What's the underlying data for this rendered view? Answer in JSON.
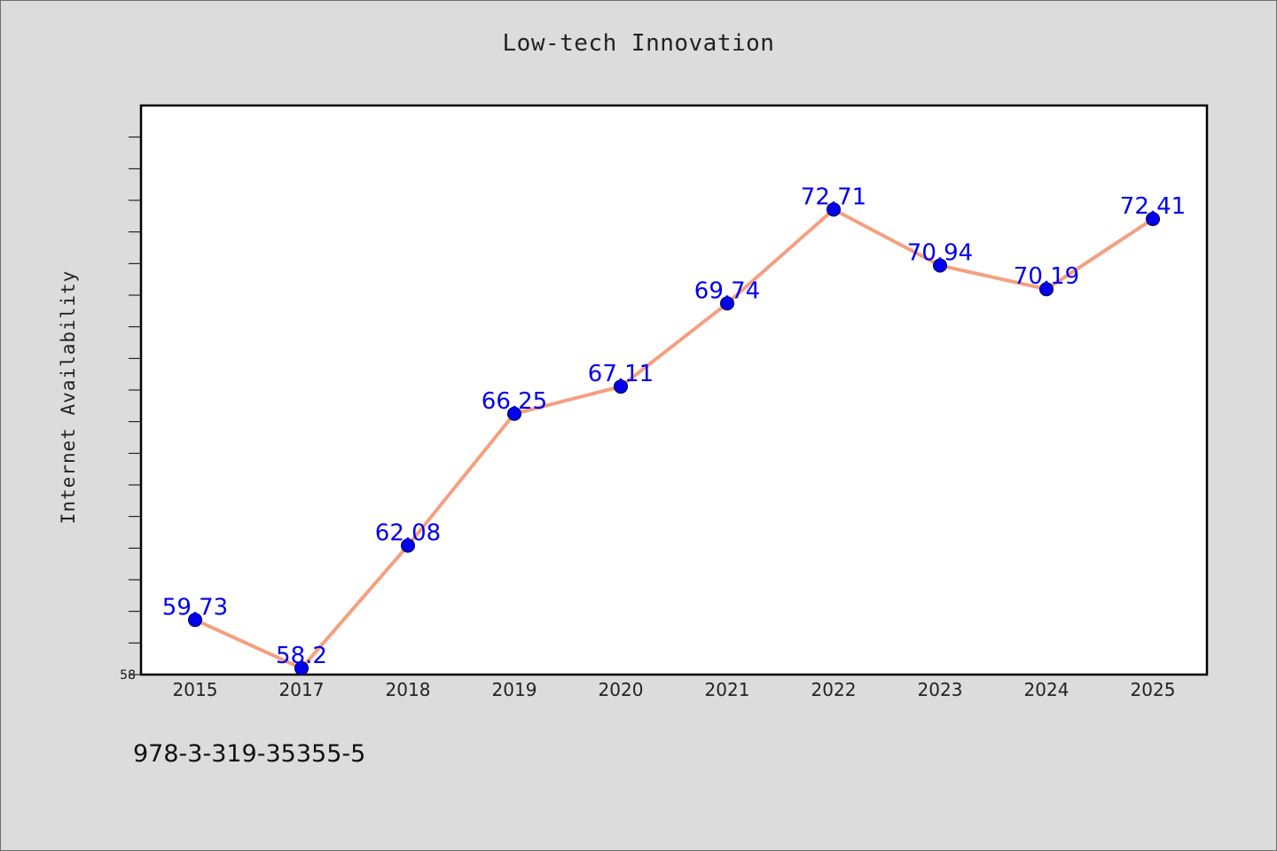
{
  "chart_data": {
    "type": "line",
    "title": "Low-tech Innovation",
    "xlabel": "",
    "ylabel": "Internet Availability",
    "categories": [
      "2015",
      "2017",
      "2018",
      "2019",
      "2020",
      "2021",
      "2022",
      "2023",
      "2024",
      "2025"
    ],
    "series": [
      {
        "values": [
          59.73,
          58.2,
          62.08,
          66.25,
          67.11,
          69.74,
          72.71,
          70.94,
          70.19,
          72.41
        ],
        "data_labels": [
          "59.73",
          "58.2",
          "62.08",
          "66.25",
          "67.11",
          "69.74",
          "72.71",
          "70.94",
          "70.19",
          "72.41"
        ],
        "line_color": "#f4a080",
        "marker_color": "#0000ee",
        "label_color": "#0000ee"
      }
    ],
    "ylim": [
      58,
      76
    ],
    "y_tick_labels": [
      "58"
    ],
    "grid": false,
    "legend": "none"
  },
  "footnote": "978-3-319-35355-5",
  "colors": {
    "background": "#dcdcdc",
    "plot_background": "#ffffff",
    "axis": "#000000"
  }
}
